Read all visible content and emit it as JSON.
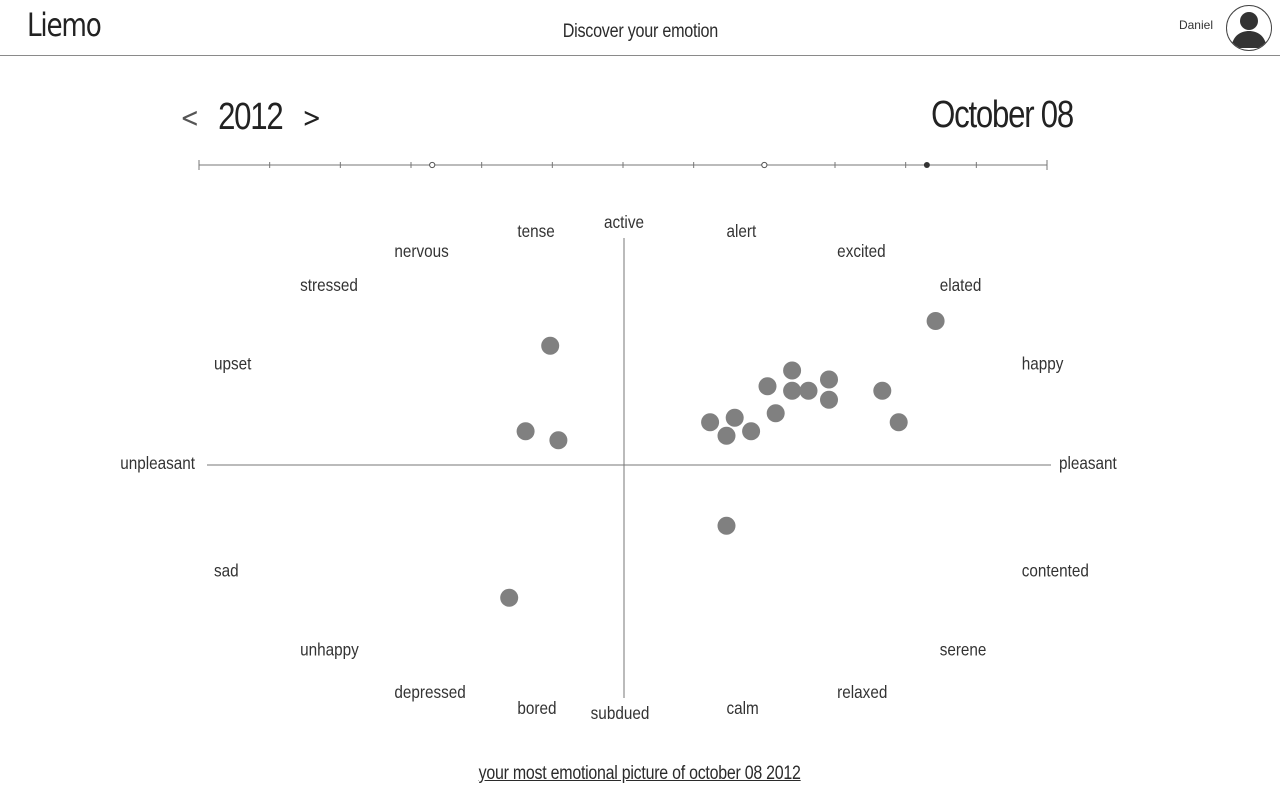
{
  "header": {
    "logo": "Liemo",
    "subtitle": "Discover your emotion",
    "user_name": "Daniel",
    "avatar_icon": "user-avatar-icon"
  },
  "date_nav": {
    "prev_label": "<",
    "year": "2012",
    "next_label": ">",
    "selected_date": "October 08",
    "timeline": {
      "months": 12,
      "open_markers": [
        3.3,
        8
      ],
      "selected_marker": 10.3
    }
  },
  "chart_data": {
    "type": "scatter",
    "x_range": [
      -1,
      1
    ],
    "y_range": [
      -1,
      1
    ],
    "axis_labels": {
      "top": "active",
      "bottom": "subdued",
      "left": "unpleasant",
      "right": "pleasant"
    },
    "emotion_labels": [
      {
        "text": "tense",
        "x": -0.26,
        "y": 1.04
      },
      {
        "text": "nervous",
        "x": -0.56,
        "y": 0.95
      },
      {
        "text": "stressed",
        "x": -0.79,
        "y": 0.8
      },
      {
        "text": "upset",
        "x": -1.0,
        "y": 0.45
      },
      {
        "text": "alert",
        "x": 0.25,
        "y": 1.04
      },
      {
        "text": "excited",
        "x": 0.52,
        "y": 0.95
      },
      {
        "text": "elated",
        "x": 0.77,
        "y": 0.8
      },
      {
        "text": "happy",
        "x": 0.97,
        "y": 0.45
      },
      {
        "text": "sad",
        "x": -1.0,
        "y": -0.47
      },
      {
        "text": "unhappy",
        "x": -0.79,
        "y": -0.82
      },
      {
        "text": "depressed",
        "x": -0.56,
        "y": -1.01
      },
      {
        "text": "bored",
        "x": -0.26,
        "y": -1.08
      },
      {
        "text": "calm",
        "x": 0.25,
        "y": -1.08
      },
      {
        "text": "relaxed",
        "x": 0.52,
        "y": -1.01
      },
      {
        "text": "serene",
        "x": 0.77,
        "y": -0.82
      },
      {
        "text": "contented",
        "x": 0.97,
        "y": -0.47
      }
    ],
    "points": [
      {
        "x": -0.18,
        "y": 0.53
      },
      {
        "x": -0.24,
        "y": 0.15
      },
      {
        "x": -0.16,
        "y": 0.11
      },
      {
        "x": -0.28,
        "y": -0.59
      },
      {
        "x": 0.21,
        "y": 0.19
      },
      {
        "x": 0.25,
        "y": 0.13
      },
      {
        "x": 0.27,
        "y": 0.21
      },
      {
        "x": 0.31,
        "y": 0.15
      },
      {
        "x": 0.35,
        "y": 0.35
      },
      {
        "x": 0.37,
        "y": 0.23
      },
      {
        "x": 0.41,
        "y": 0.42
      },
      {
        "x": 0.41,
        "y": 0.33
      },
      {
        "x": 0.45,
        "y": 0.33
      },
      {
        "x": 0.5,
        "y": 0.38
      },
      {
        "x": 0.5,
        "y": 0.29
      },
      {
        "x": 0.63,
        "y": 0.33
      },
      {
        "x": 0.67,
        "y": 0.19
      },
      {
        "x": 0.76,
        "y": 0.64
      },
      {
        "x": 0.25,
        "y": -0.27
      }
    ]
  },
  "footer": {
    "link_label": "your most emotional picture of october 08 2012"
  },
  "colors": {
    "dot": "#808080",
    "axis": "#777777",
    "text": "#333333"
  }
}
